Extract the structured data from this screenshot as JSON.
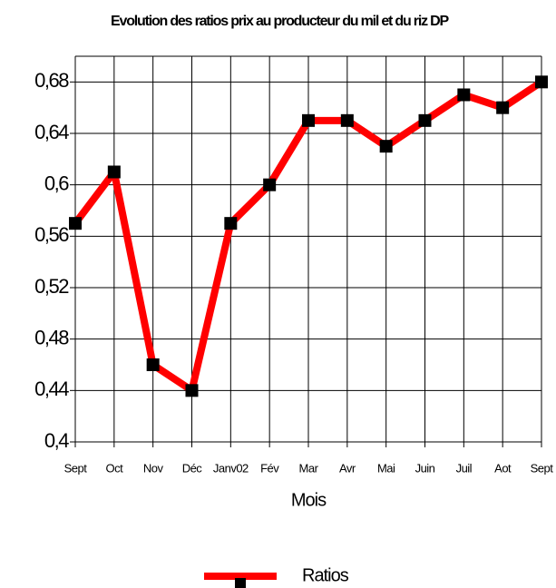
{
  "chart_data": {
    "type": "line",
    "title": "Evolution des ratios prix au producteur du mil et du riz DP",
    "x_label": "Mois",
    "categories": [
      "Sept",
      "Oct",
      "Nov",
      "Déc",
      "Janv02",
      "Fév",
      "Mar",
      "Avr",
      "Mai",
      "Juin",
      "Juil",
      "Aot",
      "Sept"
    ],
    "series": [
      {
        "name": "Ratios",
        "color": "#ff0000",
        "marker_color": "#000000",
        "values": [
          0.57,
          0.61,
          0.46,
          0.44,
          0.57,
          0.6,
          0.65,
          0.65,
          0.63,
          0.65,
          0.67,
          0.66,
          0.68
        ]
      }
    ],
    "ylim": [
      0.4,
      0.7
    ],
    "yticks": [
      {
        "value": 0.4,
        "label": "0,4"
      },
      {
        "value": 0.44,
        "label": "0,44"
      },
      {
        "value": 0.48,
        "label": "0,48"
      },
      {
        "value": 0.52,
        "label": "0,52"
      },
      {
        "value": 0.56,
        "label": "0,56"
      },
      {
        "value": 0.6,
        "label": "0,6"
      },
      {
        "value": 0.64,
        "label": "0,64"
      },
      {
        "value": 0.68,
        "label": "0,68"
      }
    ],
    "grid": true,
    "legend": "bottom"
  }
}
